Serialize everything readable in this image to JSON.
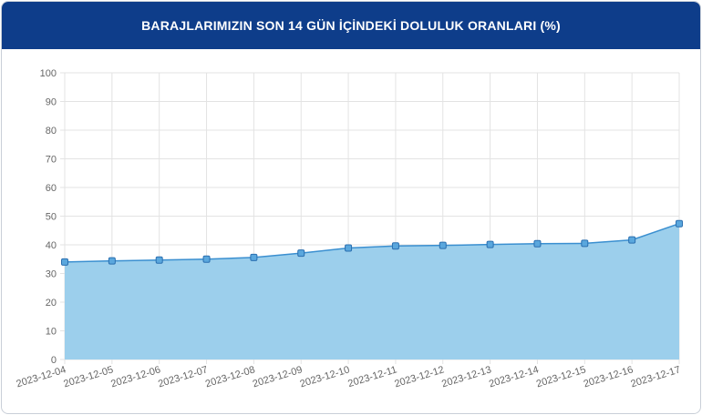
{
  "header": {
    "title": "BARAJLARIMIZIN SON 14 GÜN İÇİNDEKİ DOLULUK ORANLARI (%)"
  },
  "chart_data": {
    "type": "area",
    "title": "BARAJLARIMIZIN SON 14 GÜN İÇİNDEKİ DOLULUK ORANLARI (%)",
    "categories": [
      "2023-12-04",
      "2023-12-05",
      "2023-12-06",
      "2023-12-07",
      "2023-12-08",
      "2023-12-09",
      "2023-12-10",
      "2023-12-11",
      "2023-12-12",
      "2023-12-13",
      "2023-12-14",
      "2023-12-15",
      "2023-12-16",
      "2023-12-17"
    ],
    "values": [
      34.0,
      34.4,
      34.7,
      35.0,
      35.6,
      37.1,
      38.9,
      39.6,
      39.8,
      40.1,
      40.4,
      40.5,
      41.7,
      47.4
    ],
    "ylim": [
      0,
      100
    ],
    "yticks": [
      0,
      10,
      20,
      30,
      40,
      50,
      60,
      70,
      80,
      90,
      100
    ],
    "grid": true,
    "legend": "none",
    "colors": {
      "line": "#3a8fd0",
      "fill": "#9ccfec",
      "marker": "#5aa7dd",
      "header": "#0e3d8a"
    }
  }
}
